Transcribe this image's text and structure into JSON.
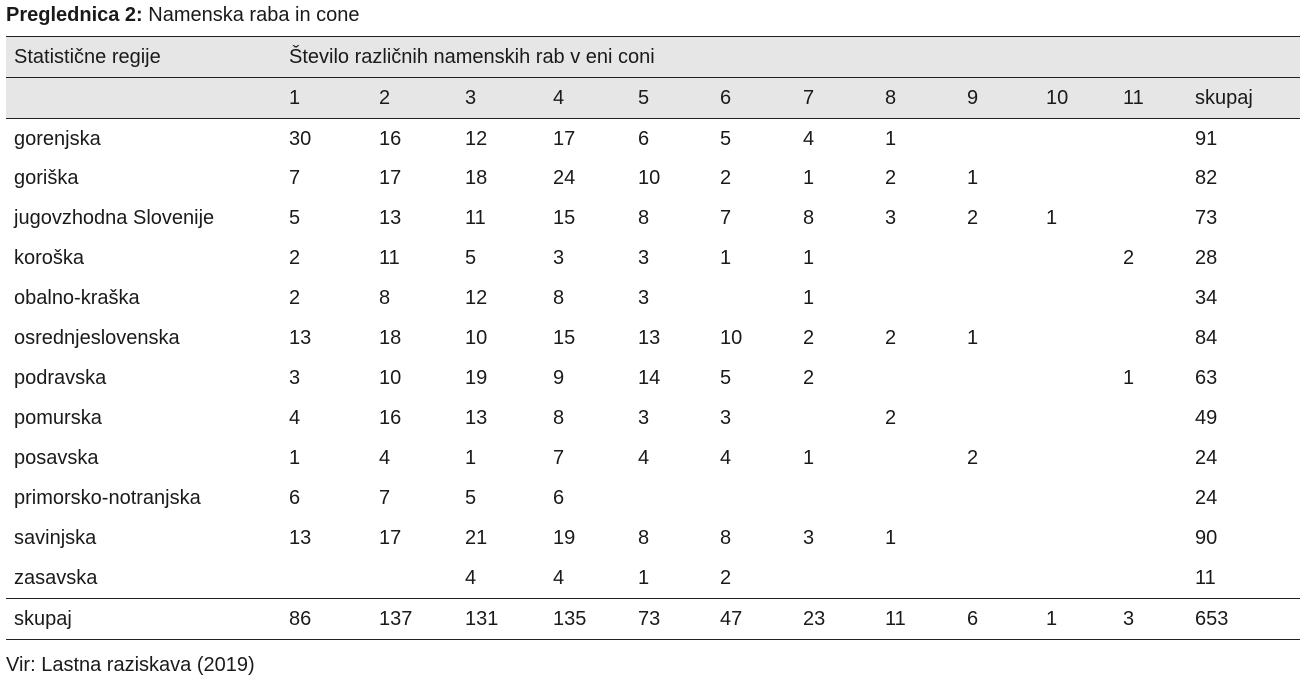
{
  "caption": {
    "label": "Preglednica 2:",
    "text": "Namenska raba in cone"
  },
  "table": {
    "header_region": "Statistične regije",
    "header_group": "Število različnih namenskih rab v eni coni",
    "columns": [
      "1",
      "2",
      "3",
      "4",
      "5",
      "6",
      "7",
      "8",
      "9",
      "10",
      "11",
      "skupaj"
    ],
    "rows": [
      {
        "name": "gorenjska",
        "values": [
          "30",
          "16",
          "12",
          "17",
          "6",
          "5",
          "4",
          "1",
          "",
          "",
          "",
          "91"
        ]
      },
      {
        "name": "goriška",
        "values": [
          "7",
          "17",
          "18",
          "24",
          "10",
          "2",
          "1",
          "2",
          "1",
          "",
          "",
          "82"
        ]
      },
      {
        "name": "jugovzhodna Slovenije",
        "values": [
          "5",
          "13",
          "11",
          "15",
          "8",
          "7",
          "8",
          "3",
          "2",
          "1",
          "",
          "73"
        ]
      },
      {
        "name": "koroška",
        "values": [
          "2",
          "11",
          "5",
          "3",
          "3",
          "1",
          "1",
          "",
          "",
          "",
          "2",
          "28"
        ]
      },
      {
        "name": "obalno-kraška",
        "values": [
          "2",
          "8",
          "12",
          "8",
          "3",
          "",
          "1",
          "",
          "",
          "",
          "",
          "34"
        ]
      },
      {
        "name": "osrednjeslovenska",
        "values": [
          "13",
          "18",
          "10",
          "15",
          "13",
          "10",
          "2",
          "2",
          "1",
          "",
          "",
          "84"
        ]
      },
      {
        "name": "podravska",
        "values": [
          "3",
          "10",
          "19",
          "9",
          "14",
          "5",
          "2",
          "",
          "",
          "",
          "1",
          "63"
        ]
      },
      {
        "name": "pomurska",
        "values": [
          "4",
          "16",
          "13",
          "8",
          "3",
          "3",
          "",
          "2",
          "",
          "",
          "",
          "49"
        ]
      },
      {
        "name": "posavska",
        "values": [
          "1",
          "4",
          "1",
          "7",
          "4",
          "4",
          "1",
          "",
          "2",
          "",
          "",
          "24"
        ]
      },
      {
        "name": "primorsko-notranjska",
        "values": [
          "6",
          "7",
          "5",
          "6",
          "",
          "",
          "",
          "",
          "",
          "",
          "",
          "24"
        ]
      },
      {
        "name": "savinjska",
        "values": [
          "13",
          "17",
          "21",
          "19",
          "8",
          "8",
          "3",
          "1",
          "",
          "",
          "",
          "90"
        ]
      },
      {
        "name": "zasavska",
        "values": [
          "",
          "",
          "4",
          "4",
          "1",
          "2",
          "",
          "",
          "",
          "",
          "",
          "11"
        ]
      }
    ],
    "total": {
      "name": "skupaj",
      "values": [
        "86",
        "137",
        "131",
        "135",
        "73",
        "47",
        "23",
        "11",
        "6",
        "1",
        "3",
        "653"
      ]
    }
  },
  "source": "Vir: Lastna raziskava (2019)"
}
